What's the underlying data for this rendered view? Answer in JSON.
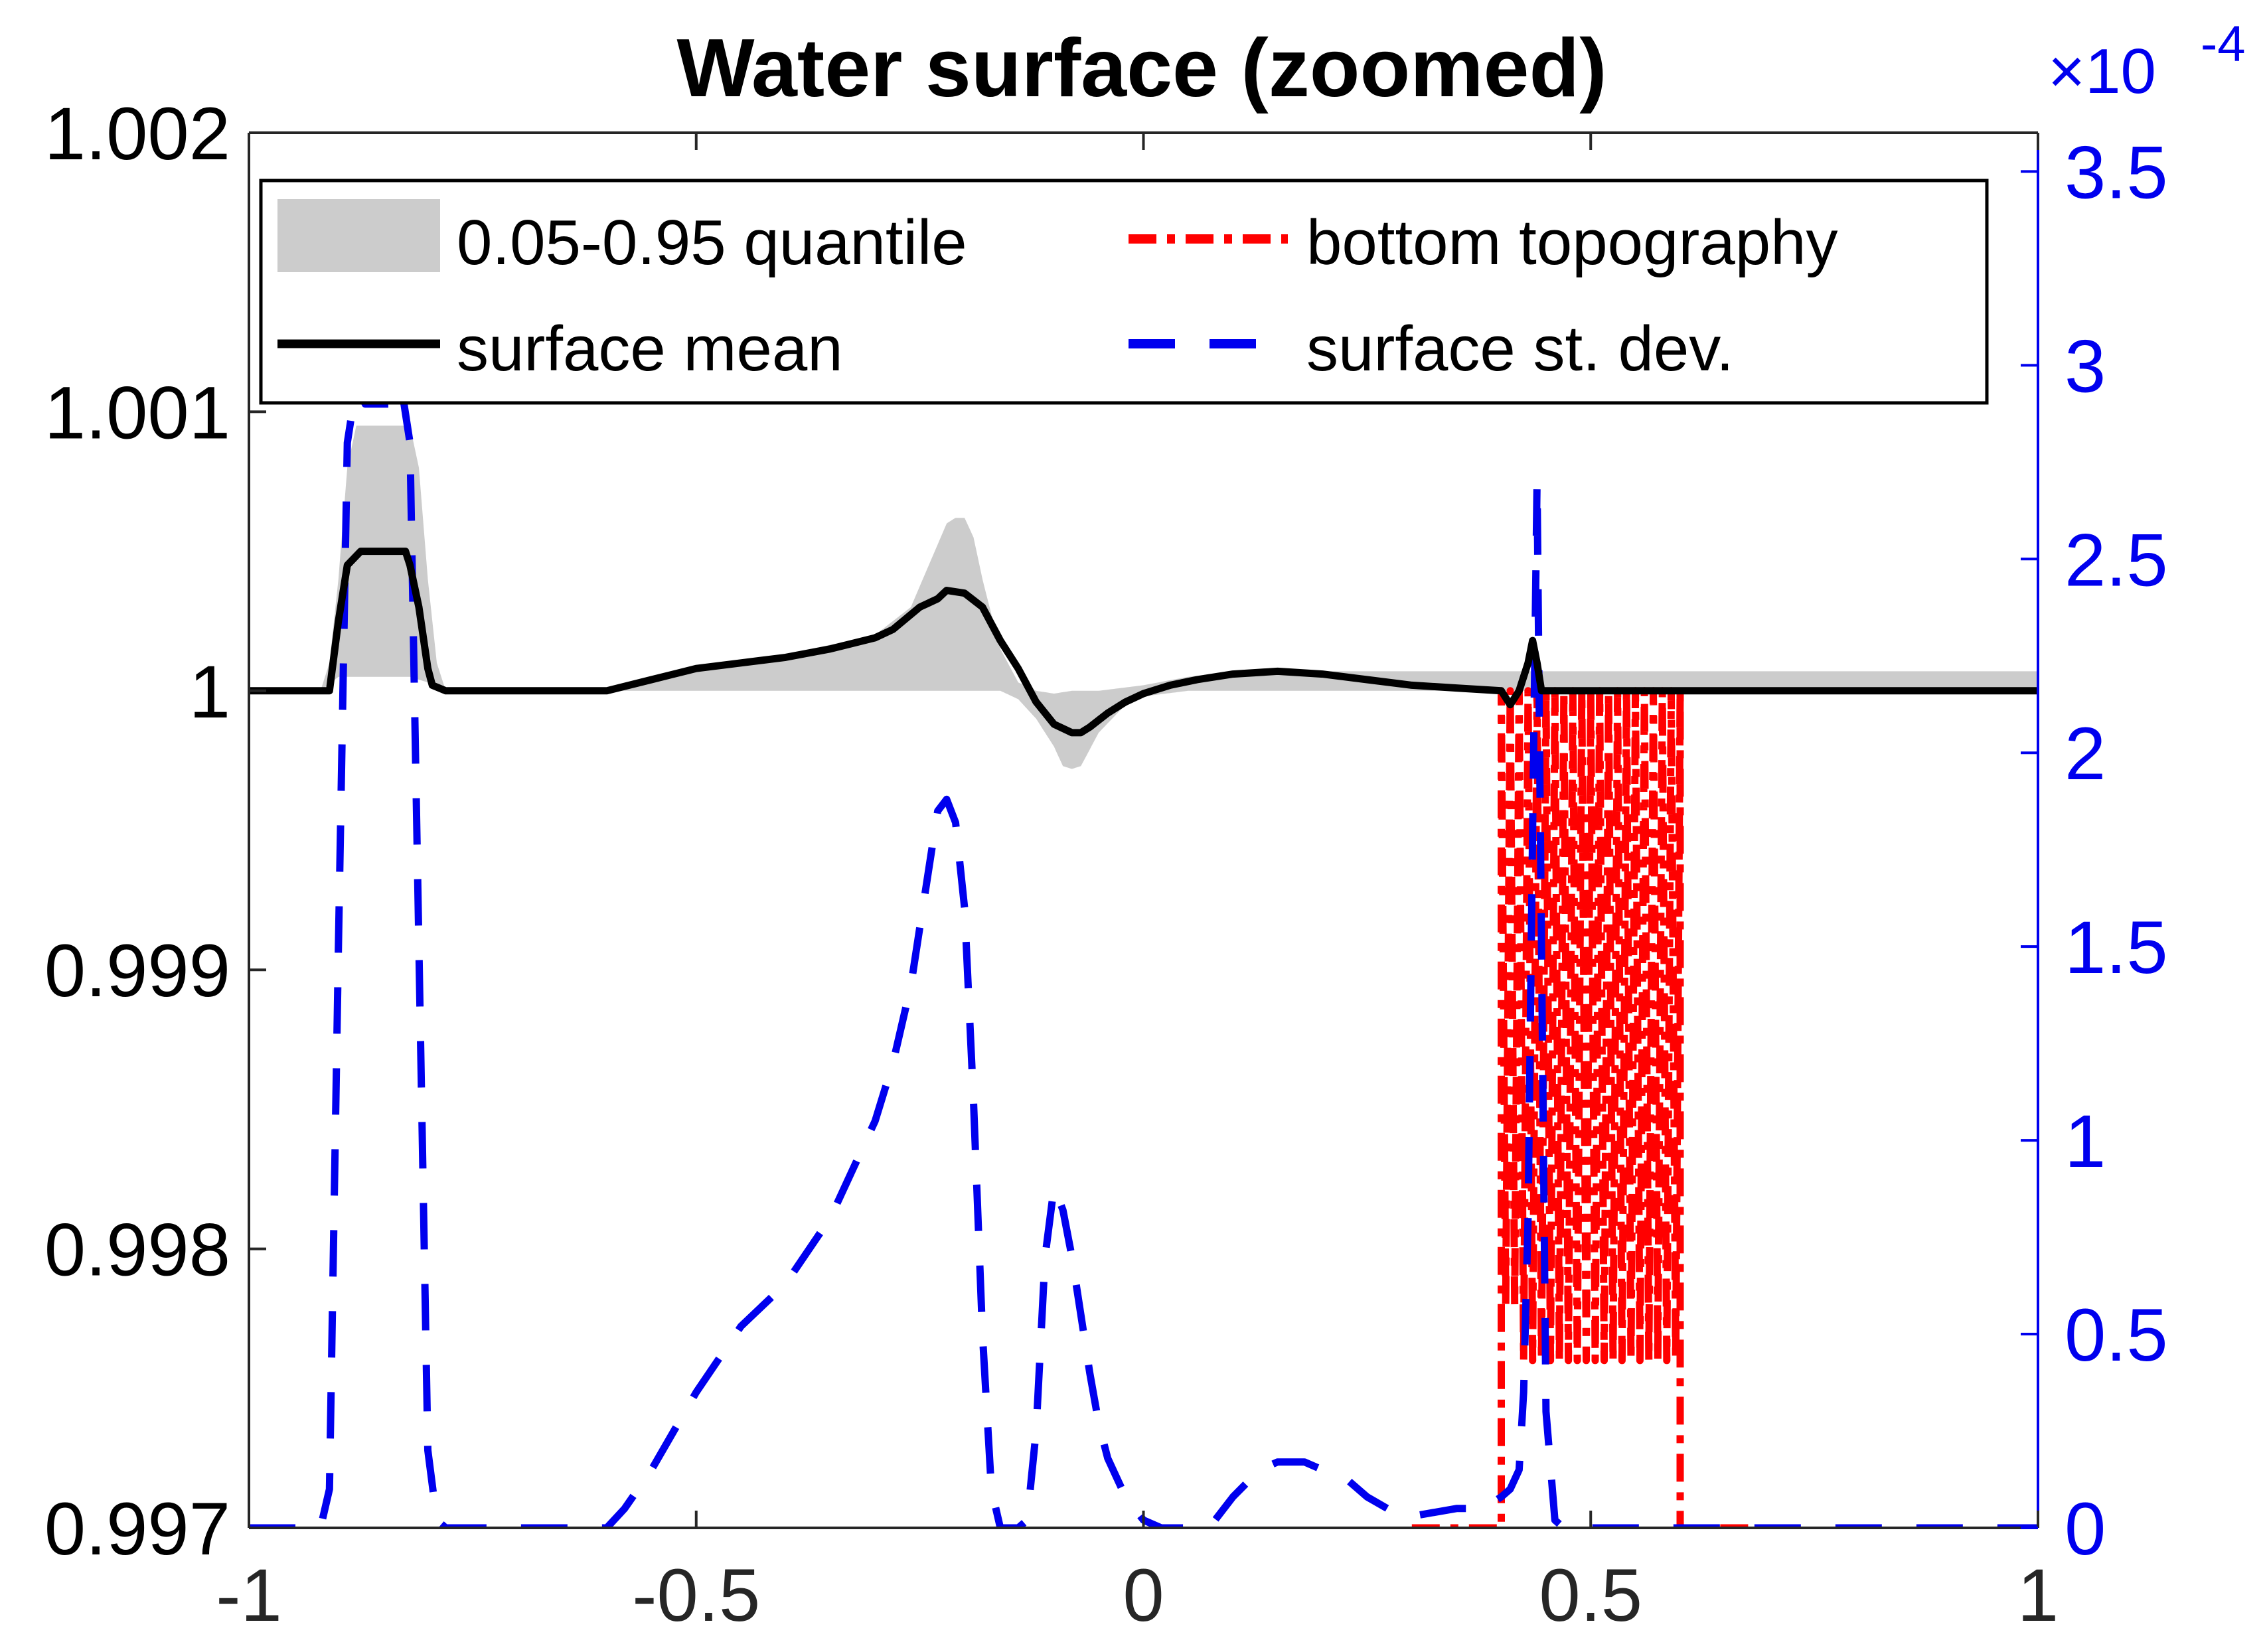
{
  "chart_data": {
    "type": "line",
    "title": "Water surface (zoomed)",
    "xlabel": "",
    "ylabel": "",
    "xlim": [
      -1,
      1
    ],
    "ylim": [
      0.997,
      1.002
    ],
    "y2lim": [
      0,
      3.6
    ],
    "x_ticks": [
      "-1",
      "-0.5",
      "0",
      "0.5",
      "1"
    ],
    "y_ticks": [
      "0.997",
      "0.998",
      "0.999",
      "1",
      "1.001",
      "1.002"
    ],
    "y2_ticks": [
      "0",
      "0.5",
      "1",
      "1.5",
      "2",
      "2.5",
      "3",
      "3.5"
    ],
    "y2_exponent_base": "×10",
    "y2_exponent": "-4",
    "colors": {
      "mean": "#000000",
      "band": "#cccccc",
      "bottom": "#ff0000",
      "stdev": "#0000ee",
      "right_axis": "#0000ee"
    },
    "legend": {
      "location": "top",
      "entries": [
        {
          "key": "band",
          "label": "0.05-0.95 quantile"
        },
        {
          "key": "bottom",
          "label": "bottom topography"
        },
        {
          "key": "mean",
          "label": "surface mean"
        },
        {
          "key": "stdev",
          "label": "surface st. dev."
        }
      ]
    },
    "series": [
      {
        "name": "surface mean",
        "axis": "left",
        "x": [
          -1,
          -0.92,
          -0.91,
          -0.9,
          -0.89,
          -0.875,
          -0.86,
          -0.84,
          -0.825,
          -0.82,
          -0.81,
          -0.8,
          -0.795,
          -0.78,
          -0.6,
          -0.55,
          -0.5,
          -0.45,
          -0.4,
          -0.35,
          -0.3,
          -0.28,
          -0.25,
          -0.23,
          -0.22,
          -0.2,
          -0.18,
          -0.16,
          -0.14,
          -0.12,
          -0.1,
          -0.08,
          -0.07,
          -0.06,
          -0.04,
          -0.02,
          0,
          0.03,
          0.06,
          0.1,
          0.15,
          0.2,
          0.25,
          0.3,
          0.35,
          0.4,
          0.41,
          0.42,
          0.43,
          0.435,
          0.44,
          0.445,
          0.45,
          1
        ],
        "values": [
          1.0,
          1.0,
          1.0,
          1.00025,
          1.00045,
          1.0005,
          1.0005,
          1.0005,
          1.0005,
          1.00045,
          1.0003,
          1.00008,
          1.00002,
          1.0,
          1.0,
          1.00004,
          1.00008,
          1.0001,
          1.00012,
          1.00015,
          1.00019,
          1.00022,
          1.0003,
          1.00033,
          1.00036,
          1.00035,
          1.0003,
          1.00018,
          1.00008,
          0.99996,
          0.99988,
          0.99985,
          0.99985,
          0.99987,
          0.99992,
          0.99996,
          0.99999,
          1.00002,
          1.00004,
          1.00006,
          1.00007,
          1.00006,
          1.00004,
          1.00002,
          1.00001,
          1.0,
          0.99995,
          1.0,
          1.0001,
          1.00018,
          1.0001,
          1.0,
          1.0,
          1.0
        ]
      },
      {
        "name": "0.05 quantile",
        "axis": "left",
        "x": [
          -1,
          -0.92,
          -0.9,
          -0.88,
          -0.82,
          -0.8,
          -0.78,
          -0.6,
          -0.5,
          -0.3,
          -0.22,
          -0.18,
          -0.16,
          -0.14,
          -0.12,
          -0.1,
          -0.09,
          -0.08,
          -0.07,
          -0.05,
          -0.02,
          0,
          0.05,
          0.1,
          1
        ],
        "values": [
          1.0,
          1.0,
          1.00005,
          1.00005,
          1.00005,
          1.00003,
          1.0,
          1.0,
          1.0,
          1.0,
          1.0,
          1.0,
          1.0,
          0.99997,
          0.9999,
          0.9998,
          0.99973,
          0.99972,
          0.99973,
          0.99985,
          0.99995,
          0.99998,
          1.0,
          1.0,
          1.0
        ]
      },
      {
        "name": "0.95 quantile",
        "axis": "left",
        "x": [
          -1,
          -0.92,
          -0.91,
          -0.9,
          -0.89,
          -0.88,
          -0.82,
          -0.81,
          -0.8,
          -0.79,
          -0.78,
          -0.6,
          -0.5,
          -0.4,
          -0.3,
          -0.26,
          -0.24,
          -0.22,
          -0.21,
          -0.2,
          -0.19,
          -0.18,
          -0.16,
          -0.14,
          -0.12,
          -0.1,
          -0.08,
          -0.05,
          0,
          0.05,
          0.1,
          1
        ],
        "values": [
          1.0,
          1.0,
          1.0001,
          1.0004,
          1.0008,
          1.00095,
          1.00095,
          1.0008,
          1.0004,
          1.0001,
          1.0,
          1.0,
          1.00008,
          1.00013,
          1.0002,
          1.0003,
          1.00045,
          1.0006,
          1.00062,
          1.00062,
          1.00055,
          1.0004,
          1.00015,
          1.00003,
          1.0,
          0.99999,
          1.0,
          1.0,
          1.00002,
          1.00005,
          1.00007,
          1.00007
        ]
      },
      {
        "name": "bottom topography",
        "axis": "left",
        "x": [
          0.3,
          0.4,
          0.40001,
          0.405,
          0.41,
          0.415,
          0.42,
          0.425,
          0.43,
          0.435,
          0.44,
          0.445,
          0.45,
          0.455,
          0.46,
          0.465,
          0.47,
          0.475,
          0.48,
          0.485,
          0.49,
          0.495,
          0.5,
          0.505,
          0.51,
          0.515,
          0.52,
          0.525,
          0.53,
          0.535,
          0.54,
          0.545,
          0.55,
          0.555,
          0.56,
          0.565,
          0.57,
          0.575,
          0.58,
          0.585,
          0.59,
          0.595,
          0.6,
          0.60001,
          0.7
        ],
        "values": [
          0.997,
          0.997,
          1.0,
          0.9978,
          1.0,
          0.9978,
          1.0,
          0.9976,
          1.0,
          0.9976,
          1.0,
          0.9976,
          1.0,
          0.9976,
          1.0,
          0.9976,
          1.0,
          0.9976,
          1.0,
          0.9976,
          1.0,
          0.9976,
          1.0,
          0.9976,
          1.0,
          0.9976,
          1.0,
          0.9976,
          1.0,
          0.9976,
          1.0,
          0.9976,
          1.0,
          0.9976,
          1.0,
          0.9976,
          1.0,
          0.9976,
          1.0,
          0.9976,
          1.0,
          0.9976,
          1.0,
          0.997,
          0.997
        ]
      },
      {
        "name": "surface st. dev.",
        "axis": "right",
        "x": [
          -1,
          -0.92,
          -0.91,
          -0.9,
          -0.89,
          -0.88,
          -0.87,
          -0.86,
          -0.84,
          -0.83,
          -0.82,
          -0.81,
          -0.8,
          -0.79,
          -0.78,
          -0.76,
          -0.6,
          -0.58,
          -0.55,
          -0.5,
          -0.45,
          -0.4,
          -0.35,
          -0.3,
          -0.28,
          -0.26,
          -0.24,
          -0.23,
          -0.22,
          -0.21,
          -0.2,
          -0.19,
          -0.18,
          -0.17,
          -0.16,
          -0.15,
          -0.14,
          -0.13,
          -0.12,
          -0.11,
          -0.1,
          -0.09,
          -0.08,
          -0.07,
          -0.06,
          -0.05,
          -0.04,
          -0.02,
          0,
          0.02,
          0.04,
          0.06,
          0.08,
          0.1,
          0.13,
          0.15,
          0.18,
          0.2,
          0.23,
          0.25,
          0.28,
          0.3,
          0.35,
          0.38,
          0.4,
          0.41,
          0.42,
          0.425,
          0.43,
          0.435,
          0.44,
          0.445,
          0.45,
          0.46,
          0.47,
          1
        ],
        "values": [
          0,
          0,
          0.1,
          1.5,
          2.8,
          2.95,
          2.9,
          2.9,
          2.9,
          2.95,
          2.8,
          1.5,
          0.2,
          0.02,
          0,
          0,
          0,
          0.05,
          0.15,
          0.35,
          0.52,
          0.63,
          0.8,
          1.05,
          1.2,
          1.4,
          1.7,
          1.85,
          1.88,
          1.82,
          1.6,
          1.1,
          0.5,
          0.1,
          0,
          0,
          0,
          0.02,
          0.25,
          0.7,
          0.88,
          0.82,
          0.7,
          0.55,
          0.4,
          0.27,
          0.18,
          0.08,
          0.02,
          0,
          0,
          0,
          0.02,
          0.08,
          0.15,
          0.17,
          0.17,
          0.15,
          0.12,
          0.08,
          0.04,
          0.03,
          0.05,
          0.05,
          0.08,
          0.1,
          0.15,
          0.35,
          0.8,
          1.8,
          2.7,
          1.5,
          0.3,
          0.02,
          0,
          0
        ]
      }
    ]
  }
}
